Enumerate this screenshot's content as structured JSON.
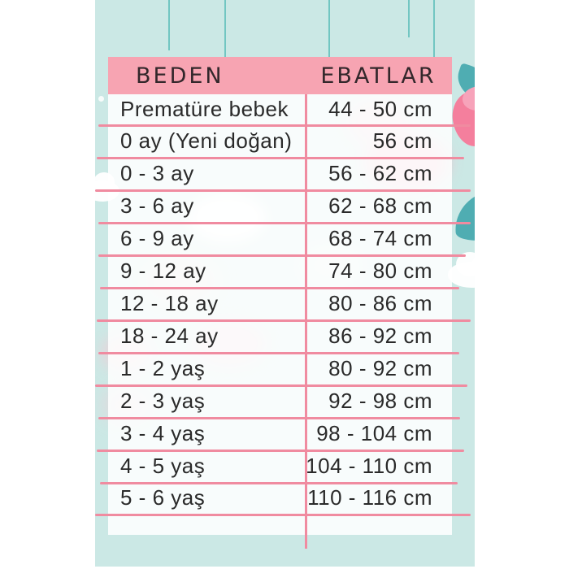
{
  "table": {
    "header": {
      "size_label": "BEDEN",
      "range_label": "EBATLAR"
    },
    "rows": [
      {
        "size": "Prematüre bebek",
        "range": "44 - 50 cm"
      },
      {
        "size": "0 ay (Yeni doğan)",
        "range": "56 cm"
      },
      {
        "size": "0 - 3 ay",
        "range": "56 - 62 cm"
      },
      {
        "size": "3 - 6 ay",
        "range": "62 - 68 cm"
      },
      {
        "size": "6 - 9 ay",
        "range": "68 - 74 cm"
      },
      {
        "size": "9 - 12 ay",
        "range": "74 - 80 cm"
      },
      {
        "size": "12 - 18 ay",
        "range": "80 - 86 cm"
      },
      {
        "size": "18 - 24 ay",
        "range": "86 - 92 cm"
      },
      {
        "size": "1 - 2 yaş",
        "range": "80 - 92 cm"
      },
      {
        "size": "2 - 3 yaş",
        "range": "92 - 98 cm"
      },
      {
        "size": "3 - 4 yaş",
        "range": "98 - 104 cm"
      },
      {
        "size": "4 - 5 yaş",
        "range": "104 - 110 cm"
      },
      {
        "size": "5 - 6 yaş",
        "range": "110 - 116 cm"
      }
    ]
  },
  "chart_data": {
    "type": "table",
    "title": "",
    "columns": [
      "BEDEN",
      "EBATLAR"
    ],
    "rows": [
      [
        "Prematüre bebek",
        "44 - 50 cm"
      ],
      [
        "0 ay (Yeni doğan)",
        "56 cm"
      ],
      [
        "0 - 3 ay",
        "56 - 62 cm"
      ],
      [
        "3 - 6 ay",
        "62 - 68 cm"
      ],
      [
        "6 - 9 ay",
        "68 - 74 cm"
      ],
      [
        "9 - 12 ay",
        "74 - 80 cm"
      ],
      [
        "12 - 18 ay",
        "80 - 86 cm"
      ],
      [
        "18 - 24 ay",
        "86 - 92 cm"
      ],
      [
        "1 - 2 yaş",
        "80 - 92 cm"
      ],
      [
        "2 - 3 yaş",
        "92 - 98 cm"
      ],
      [
        "3 - 4 yaş",
        "98 - 104 cm"
      ],
      [
        "4 - 5 yaş",
        "104 - 110 cm"
      ],
      [
        "5 - 6 yaş",
        "110 - 116 cm"
      ]
    ]
  },
  "colors": {
    "background_teal": "#cbe8e5",
    "header_pink": "#f7a4b2",
    "line_pink": "#f08ba0",
    "string_teal": "#72c6c2",
    "accent_teal": "#4fadb2",
    "accent_pink": "#f47f9d",
    "text_dark": "#2a2a2a"
  }
}
